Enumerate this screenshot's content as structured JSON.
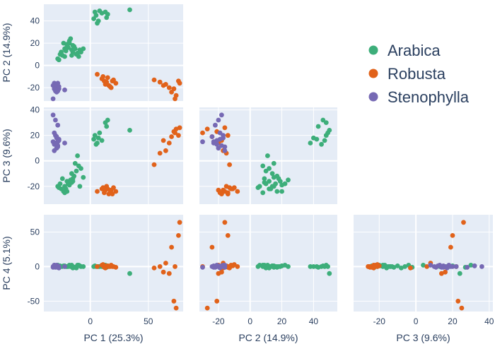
{
  "chart_data": {
    "type": "scatter",
    "subtype": "scatter-matrix (lower triangle)",
    "legend": {
      "placement": "right",
      "entries": [
        {
          "name": "Arabica",
          "color": "#3dae7a"
        },
        {
          "name": "Robusta",
          "color": "#e1621a"
        },
        {
          "name": "Stenophylla",
          "color": "#7669b4"
        }
      ]
    },
    "grid": true,
    "dimensions": [
      {
        "key": "pc1",
        "label": "PC 1 (25.3%)",
        "range": [
          -40,
          80
        ],
        "ticks": [
          0,
          50
        ]
      },
      {
        "key": "pc2",
        "label": "PC 2 (14.9%)",
        "range": [
          -32,
          55
        ],
        "ticks": [
          -20,
          0,
          20,
          40
        ]
      },
      {
        "key": "pc3",
        "label": "PC 3 (9.6%)",
        "range": [
          -34,
          42
        ],
        "ticks": [
          -20,
          0,
          20,
          40
        ]
      },
      {
        "key": "pc4",
        "label": "PC 4 (5.1%)",
        "range": [
          -65,
          75
        ],
        "ticks": [
          -50,
          0,
          50
        ]
      }
    ],
    "panels": [
      {
        "x": "pc1",
        "y": "pc2"
      },
      {
        "x": "pc1",
        "y": "pc3"
      },
      {
        "x": "pc2",
        "y": "pc3"
      },
      {
        "x": "pc1",
        "y": "pc4"
      },
      {
        "x": "pc2",
        "y": "pc4"
      },
      {
        "x": "pc3",
        "y": "pc4"
      }
    ],
    "series": [
      {
        "name": "Arabica",
        "color": "#3dae7a",
        "points": [
          [
            3,
            42,
            17,
            0
          ],
          [
            5,
            45,
            13,
            0
          ],
          [
            4,
            48,
            20,
            1
          ],
          [
            8,
            49,
            22,
            0
          ],
          [
            10,
            47,
            16,
            0
          ],
          [
            13,
            48,
            30,
            2
          ],
          [
            15,
            46,
            32,
            1
          ],
          [
            7,
            40,
            18,
            0
          ],
          [
            14,
            43,
            27,
            -1
          ],
          [
            34,
            50,
            24,
            -10
          ],
          [
            6,
            38,
            14,
            0
          ],
          [
            -20,
            19,
            -16,
            0
          ],
          [
            -18,
            22,
            -18,
            2
          ],
          [
            -22,
            15,
            -20,
            1
          ],
          [
            -15,
            18,
            -14,
            0
          ],
          [
            -25,
            12,
            -22,
            0
          ],
          [
            -16,
            14,
            -10,
            1
          ],
          [
            -12,
            10,
            -8,
            -2
          ],
          [
            -8,
            12,
            -6,
            0
          ],
          [
            -23,
            20,
            -24,
            1
          ],
          [
            -28,
            6,
            -20,
            2
          ],
          [
            -14,
            17,
            -12,
            -1
          ],
          [
            -19,
            16,
            -18,
            0
          ],
          [
            -10,
            8,
            -4,
            2
          ],
          [
            -17,
            24,
            -15,
            0
          ],
          [
            -26,
            10,
            -18,
            1
          ],
          [
            -21,
            13,
            -22,
            0
          ],
          [
            -13,
            15,
            -2,
            -1
          ],
          [
            -24,
            9,
            -14,
            0
          ],
          [
            -11,
            11,
            4,
            2
          ],
          [
            -27,
            5,
            -21,
            0
          ],
          [
            -18,
            20,
            -19,
            1
          ],
          [
            -15,
            12,
            -16,
            -2
          ],
          [
            -22,
            8,
            -25,
            0
          ],
          [
            -9,
            14,
            -20,
            1
          ],
          [
            -20,
            17,
            -24,
            0
          ],
          [
            -16,
            9,
            -17,
            2
          ],
          [
            -6,
            15,
            -13,
            0
          ]
        ]
      },
      {
        "name": "Robusta",
        "color": "#e1621a",
        "points": [
          [
            6,
            -8,
            -24,
            0
          ],
          [
            10,
            -12,
            -22,
            2
          ],
          [
            12,
            -14,
            -25,
            -1
          ],
          [
            14,
            -15,
            -20,
            1
          ],
          [
            16,
            -18,
            -26,
            0
          ],
          [
            18,
            -20,
            -23,
            2
          ],
          [
            20,
            -13,
            -21,
            0
          ],
          [
            22,
            -16,
            -24,
            -1
          ],
          [
            15,
            -11,
            -22,
            1
          ],
          [
            17,
            -19,
            -25,
            0
          ],
          [
            11,
            -10,
            -21,
            3
          ],
          [
            13,
            -17,
            -23,
            -2
          ],
          [
            19,
            -14,
            -26,
            0
          ],
          [
            55,
            -13,
            -3,
            -2
          ],
          [
            60,
            -15,
            6,
            0
          ],
          [
            65,
            -17,
            8,
            5
          ],
          [
            68,
            -20,
            14,
            -10
          ],
          [
            70,
            -24,
            19,
            28
          ],
          [
            72,
            -21,
            23,
            -50
          ],
          [
            74,
            -27,
            25,
            -60
          ],
          [
            76,
            -14,
            20,
            45
          ],
          [
            77,
            -16,
            26,
            64
          ],
          [
            63,
            -18,
            16,
            -8
          ],
          [
            73,
            -30,
            22,
            0
          ]
        ]
      },
      {
        "name": "Stenophylla",
        "color": "#7669b4",
        "points": [
          [
            -32,
            -18,
            36,
            0
          ],
          [
            -30,
            -20,
            32,
            1
          ],
          [
            -28,
            -22,
            28,
            -1
          ],
          [
            -31,
            -19,
            22,
            0
          ],
          [
            -29,
            -17,
            18,
            2
          ],
          [
            -27,
            -21,
            16,
            0
          ],
          [
            -30,
            -23,
            14,
            -1
          ],
          [
            -28,
            -18,
            12,
            1
          ],
          [
            -29,
            -20,
            10,
            0
          ],
          [
            -31,
            -16,
            8,
            2
          ],
          [
            -27,
            -19,
            17,
            -2
          ],
          [
            -30,
            -17,
            20,
            0
          ],
          [
            -28,
            -23,
            15,
            1
          ],
          [
            -22,
            -22,
            14,
            0
          ],
          [
            -32,
            -30,
            15,
            -1
          ],
          [
            -29,
            -24,
            19,
            0
          ],
          [
            -31,
            -21,
            13,
            2
          ],
          [
            -28,
            -16,
            11,
            -1
          ]
        ]
      }
    ]
  }
}
